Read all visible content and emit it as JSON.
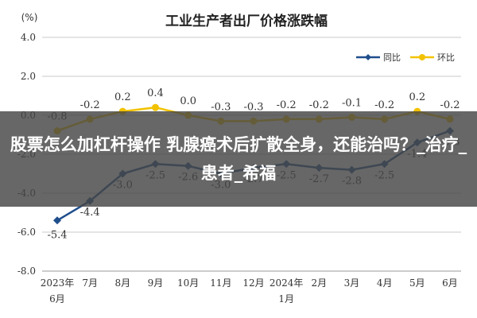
{
  "chart_data": {
    "type": "line",
    "title": "工业生产者出厂价格涨跌幅",
    "ylabel": "(%)",
    "ylim": [
      -8.0,
      4.0
    ],
    "yticks": [
      "4.0",
      "2.0",
      "0.0",
      "-2.0",
      "-4.0",
      "-6.0",
      "-8.0"
    ],
    "categories": [
      "2023年6月",
      "7月",
      "8月",
      "9月",
      "10月",
      "11月",
      "12月",
      "2024年1月",
      "2月",
      "3月",
      "4月",
      "5月",
      "6月"
    ],
    "x_tick_labels": [
      [
        "2023年",
        "6月"
      ],
      [
        "7月"
      ],
      [
        "8月"
      ],
      [
        "9月"
      ],
      [
        "10月"
      ],
      [
        "11月"
      ],
      [
        "12月"
      ],
      [
        "2024年",
        "1月"
      ],
      [
        "2月"
      ],
      [
        "3月"
      ],
      [
        "4月"
      ],
      [
        "5月"
      ],
      [
        "6月"
      ]
    ],
    "legend_position": "top-right",
    "grid": true,
    "series": [
      {
        "name": "同比",
        "color": "#1f4e8c",
        "values": [
          -5.4,
          -4.4,
          -3.0,
          -2.5,
          -2.6,
          -3.0,
          -2.7,
          -2.5,
          -2.7,
          -2.8,
          -2.5,
          -1.4,
          -0.8
        ],
        "labels": [
          "-5.4",
          "-4.4",
          "-3.0",
          "-2.5",
          "-2.6",
          "-3.0",
          "-2.7",
          "-2.5",
          "-2.7",
          "-2.8",
          "-2.5",
          "-1.4",
          "-0.8"
        ]
      },
      {
        "name": "环比",
        "color": "#f2c200",
        "values": [
          -0.8,
          -0.2,
          0.2,
          0.4,
          0.0,
          -0.3,
          -0.3,
          -0.2,
          -0.2,
          -0.1,
          -0.2,
          0.2,
          -0.2
        ],
        "labels": [
          "-0.8",
          "-0.2",
          "0.2",
          "0.4",
          "0.0",
          "-0.3",
          "-0.3",
          "-0.2",
          "-0.2",
          "-0.1",
          "-0.2",
          "0.2",
          "-0.2"
        ]
      }
    ]
  },
  "overlay": {
    "headline": "股票怎么加杠杆操作 乳腺癌术后扩散全身，还能治吗？_治疗_患者_希福"
  }
}
